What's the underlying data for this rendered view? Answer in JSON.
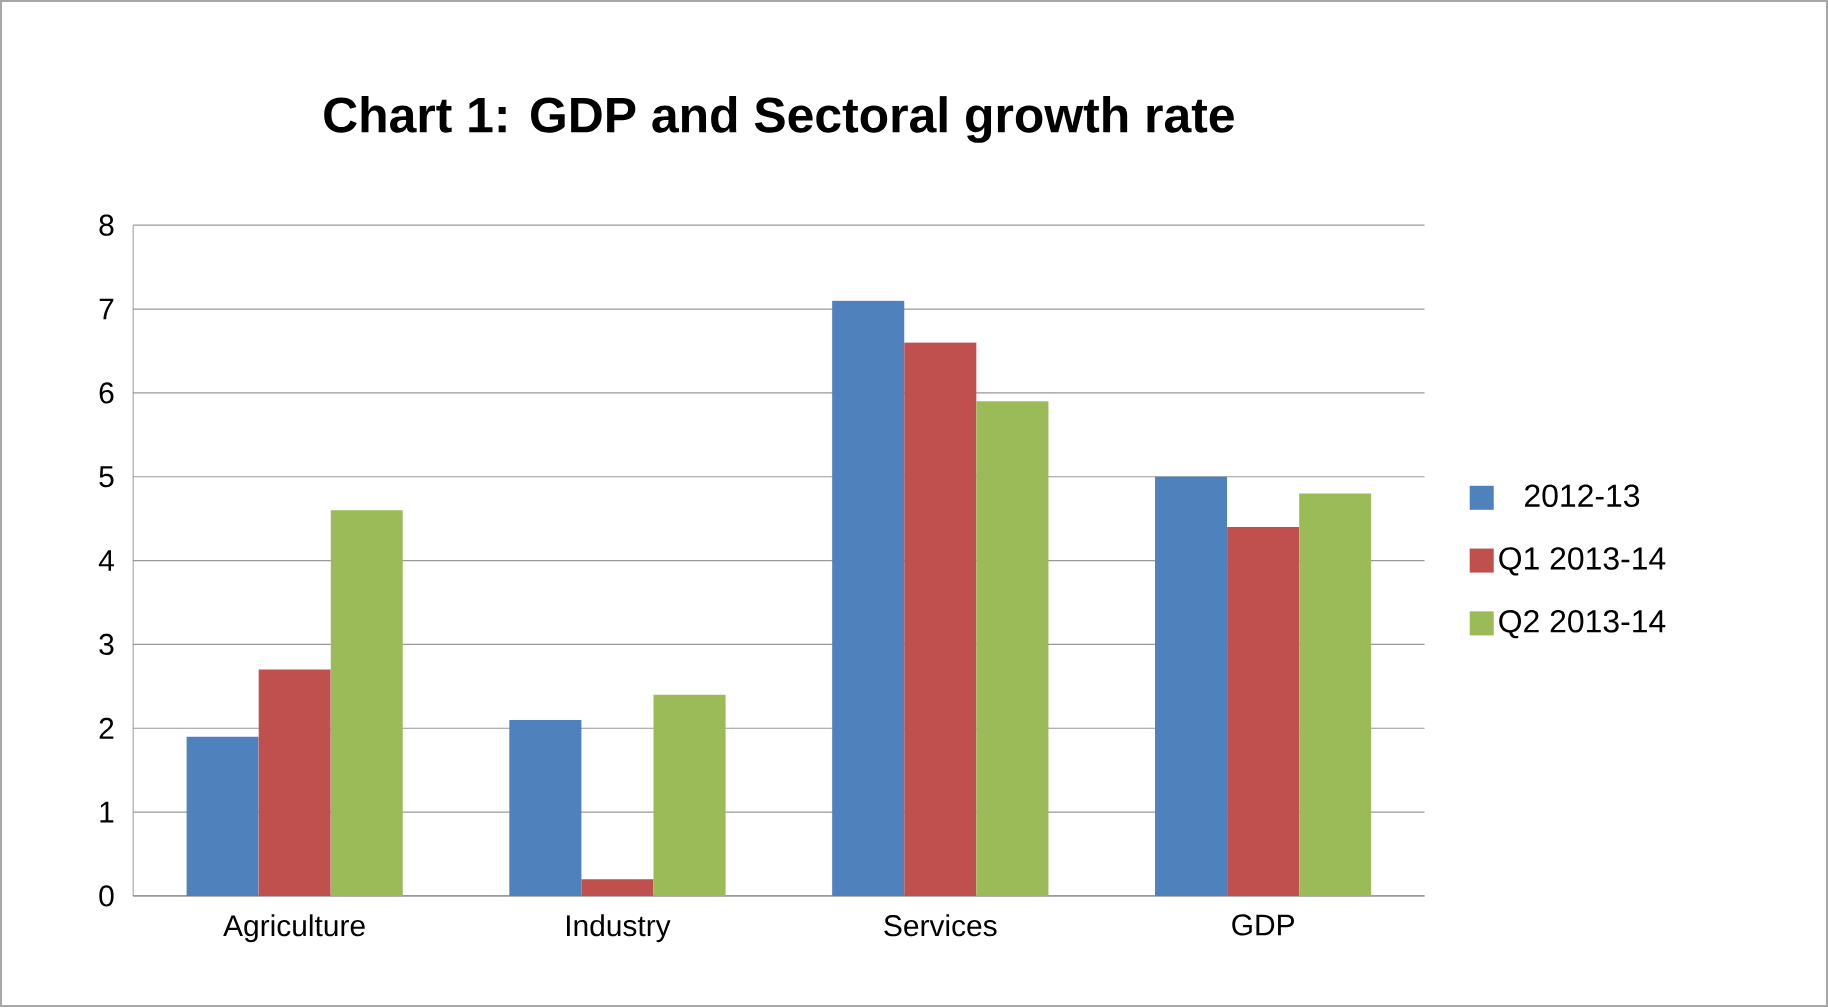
{
  "chart_data": {
    "type": "bar",
    "title": "Chart 1: GDP and Sectoral growth rate",
    "categories": [
      "Agriculture",
      "Industry",
      "Services",
      "GDP"
    ],
    "series": [
      {
        "name": "2012-13",
        "color": "#4f81bd",
        "values": [
          1.9,
          2.1,
          7.1,
          5.0
        ]
      },
      {
        "name": "Q1 2013-14",
        "color": "#c0504d",
        "values": [
          2.7,
          0.2,
          6.6,
          4.4
        ]
      },
      {
        "name": "Q2 2013-14",
        "color": "#9bbb59",
        "values": [
          4.6,
          2.4,
          5.9,
          4.8
        ]
      }
    ],
    "ylim": [
      0,
      8
    ],
    "yticks": [
      0,
      1,
      2,
      3,
      4,
      5,
      6,
      7,
      8
    ],
    "grid": "y",
    "legend": "right"
  }
}
